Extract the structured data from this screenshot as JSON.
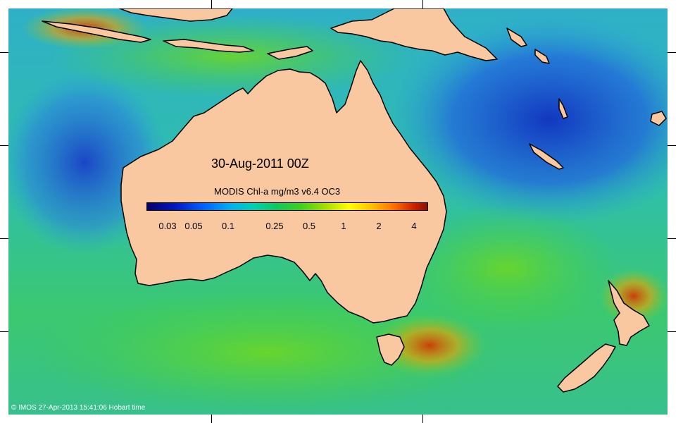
{
  "map": {
    "date_label": "30-Aug-2011 00Z",
    "product_label": "MODIS Chl-a mg/m3 v6.4 OC3",
    "colorbar": {
      "scale": "log",
      "tick_labels": [
        "0.03",
        "0.05",
        "0.1",
        "0.25",
        "0.5",
        "1",
        "2",
        "4"
      ]
    },
    "credit": "© IMOS 27-Apr-2013 15:41:06 Hobart time",
    "colors": {
      "land": "#f9c8a0",
      "coastline": "#000000",
      "ocean_low": "#1a4fd0",
      "ocean_mid": "#2fbfa0",
      "ocean_high": "#50d040",
      "bloom": "#e06000"
    }
  }
}
